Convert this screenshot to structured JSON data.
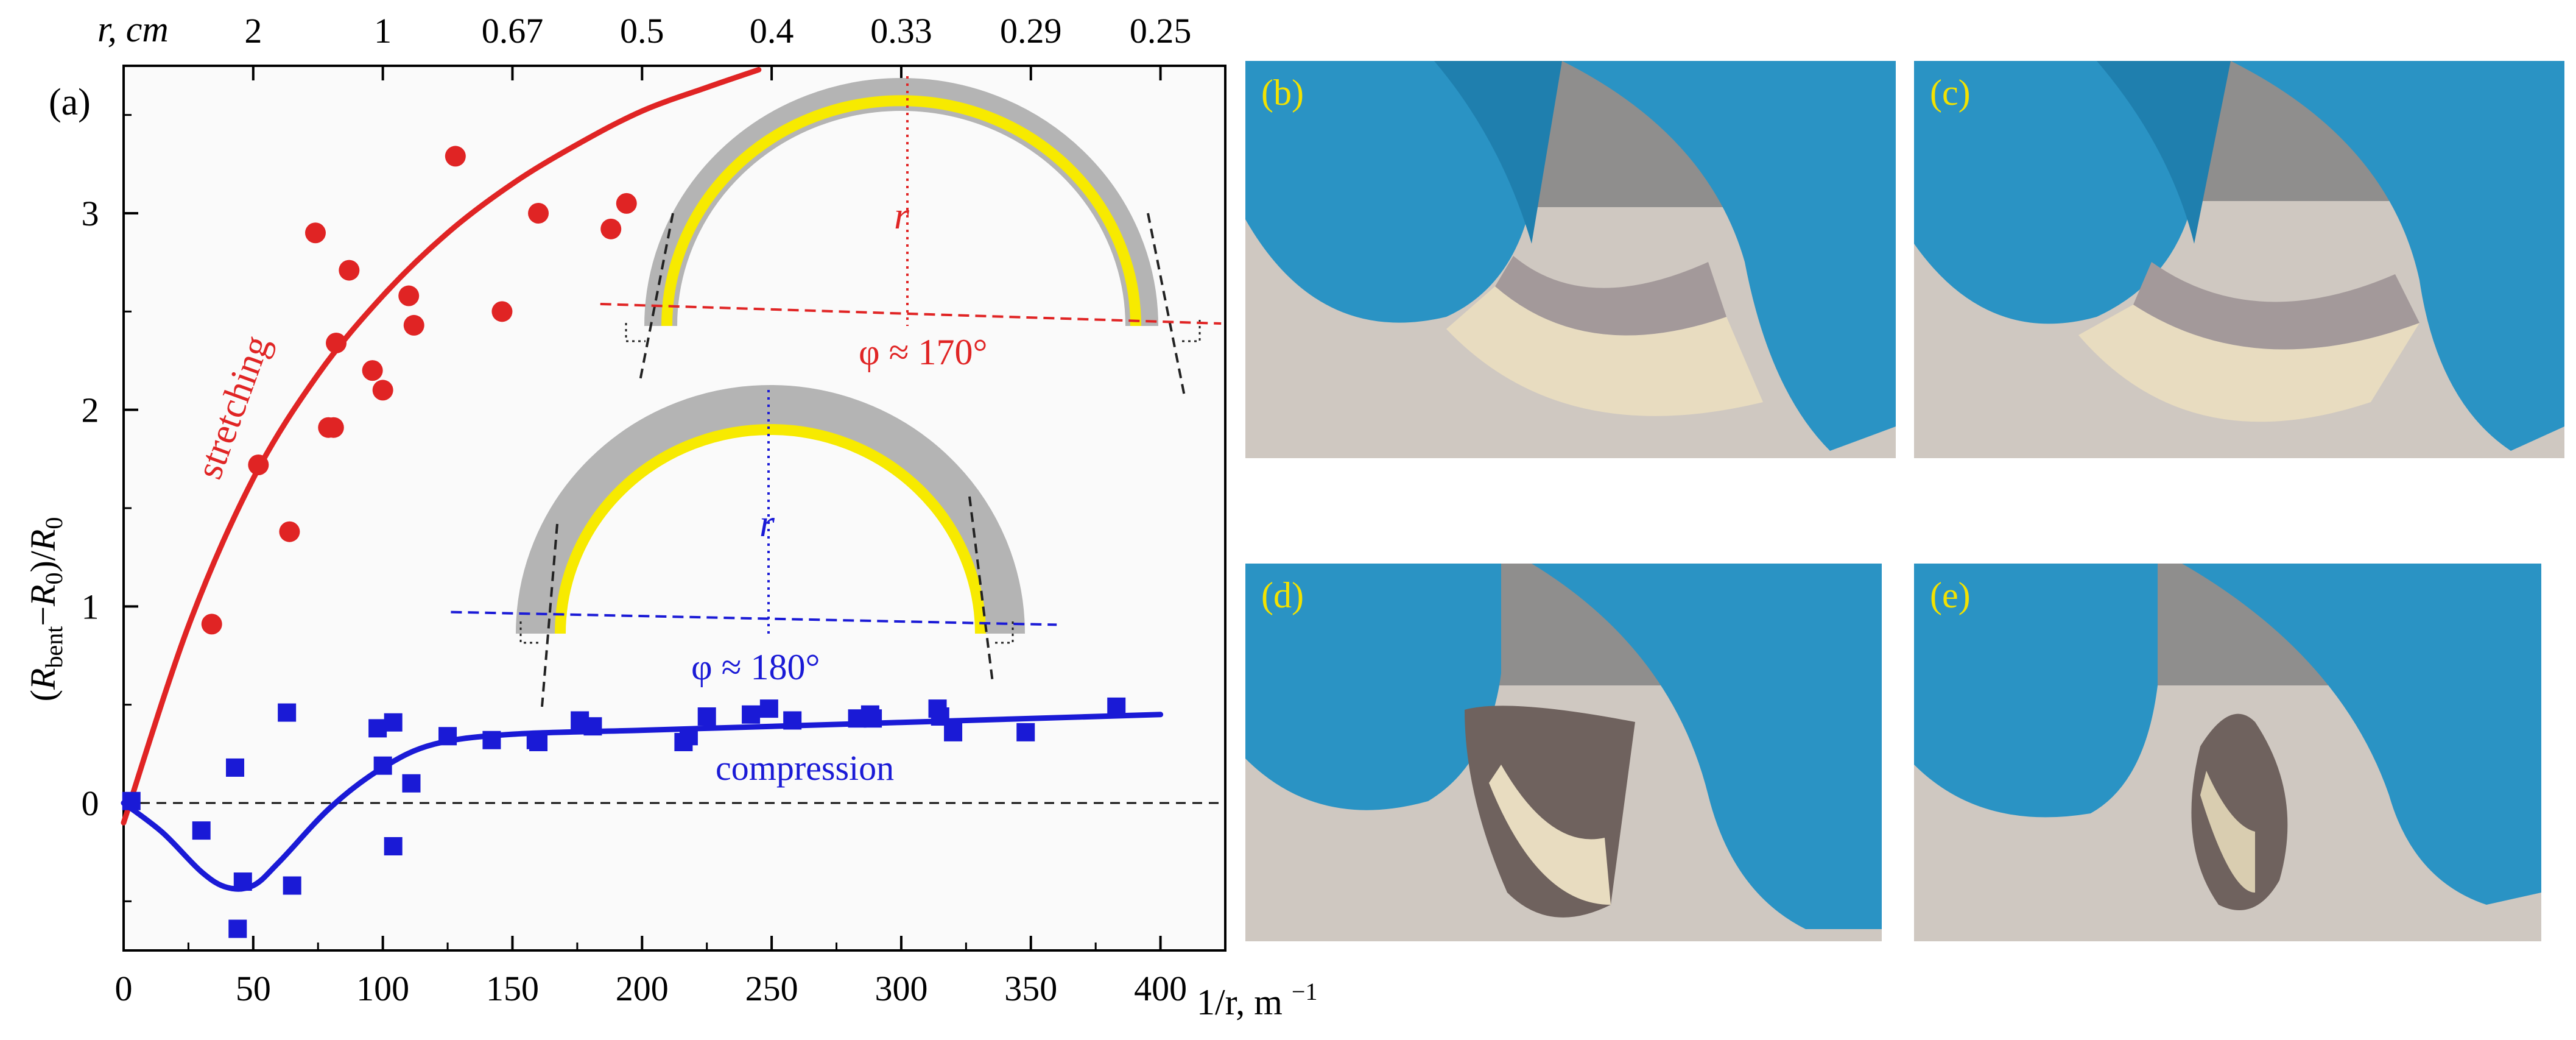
{
  "chart_data": {
    "type": "scatter",
    "panel_label": "(a)",
    "xlabel": "1/r, m",
    "xlabel_exp": "−1",
    "ylabel_parts": [
      "(",
      "R",
      "bent",
      "−",
      "R",
      "0",
      ")/",
      "R",
      "0"
    ],
    "top_axis_label": "r, cm",
    "xlim": [
      0,
      425
    ],
    "ylim": [
      -0.75,
      3.75
    ],
    "x_ticks": [
      0,
      50,
      100,
      150,
      200,
      250,
      300,
      350,
      400
    ],
    "x_tick_labels": [
      "0",
      "50",
      "100",
      "150",
      "200",
      "250",
      "300",
      "350",
      "400"
    ],
    "y_ticks": [
      0,
      1,
      2,
      3
    ],
    "y_tick_labels": [
      "0",
      "1",
      "2",
      "3"
    ],
    "top_ticks": [
      50,
      100,
      150,
      200,
      250,
      300,
      350,
      400
    ],
    "top_tick_labels": [
      "2",
      "1",
      "0.67",
      "0.5",
      "0.4",
      "0.33",
      "0.29",
      "0.25"
    ],
    "zero_line": true,
    "series": [
      {
        "name": "stretching",
        "color": "#e02424",
        "marker": "circle",
        "points": [
          [
            34,
            0.91
          ],
          [
            52,
            1.72
          ],
          [
            64,
            1.38
          ],
          [
            74,
            2.9
          ],
          [
            79,
            1.91
          ],
          [
            81,
            1.91
          ],
          [
            82,
            2.34
          ],
          [
            87,
            2.71
          ],
          [
            96,
            2.2
          ],
          [
            100,
            2.1
          ],
          [
            110,
            2.58
          ],
          [
            112,
            2.43
          ],
          [
            128,
            3.29
          ],
          [
            146,
            2.5
          ],
          [
            160,
            3.0
          ],
          [
            188,
            2.92
          ],
          [
            194,
            3.05
          ]
        ],
        "fit_x": [
          0,
          25,
          50,
          75,
          100,
          125,
          150,
          175,
          200,
          225,
          245
        ],
        "fit_y": [
          -0.1,
          0.9,
          1.65,
          2.18,
          2.58,
          2.9,
          3.15,
          3.35,
          3.52,
          3.64,
          3.73
        ]
      },
      {
        "name": "compression",
        "color": "#1a1ad6",
        "marker": "square",
        "points": [
          [
            3,
            0.01
          ],
          [
            30,
            -0.14
          ],
          [
            43,
            0.18
          ],
          [
            44,
            -0.64
          ],
          [
            46,
            -0.4
          ],
          [
            63,
            0.46
          ],
          [
            65,
            -0.42
          ],
          [
            98,
            0.38
          ],
          [
            100,
            0.19
          ],
          [
            104,
            -0.22
          ],
          [
            104,
            0.41
          ],
          [
            111,
            0.1
          ],
          [
            125,
            0.34
          ],
          [
            142,
            0.32
          ],
          [
            159,
            0.32
          ],
          [
            160,
            0.31
          ],
          [
            176,
            0.42
          ],
          [
            181,
            0.39
          ],
          [
            216,
            0.31
          ],
          [
            218,
            0.34
          ],
          [
            225,
            0.44
          ],
          [
            242,
            0.45
          ],
          [
            249,
            0.48
          ],
          [
            258,
            0.42
          ],
          [
            283,
            0.43
          ],
          [
            288,
            0.45
          ],
          [
            289,
            0.43
          ],
          [
            314,
            0.48
          ],
          [
            315,
            0.44
          ],
          [
            320,
            0.36
          ],
          [
            348,
            0.36
          ],
          [
            383,
            0.49
          ]
        ],
        "fit_x": [
          0,
          15,
          30,
          40,
          50,
          60,
          80,
          100,
          120,
          150,
          200,
          250,
          300,
          350,
          400
        ],
        "fit_y": [
          0,
          -0.15,
          -0.35,
          -0.43,
          -0.42,
          -0.3,
          -0.02,
          0.18,
          0.3,
          0.35,
          0.37,
          0.39,
          0.41,
          0.43,
          0.45
        ]
      }
    ],
    "annotations": {
      "stretching_label": "stretching",
      "compression_label": "compression",
      "red_radius_label": "r",
      "red_angle_label": "φ ≈ 170°",
      "blue_radius_label": "r",
      "blue_angle_label": "φ ≈ 180°"
    }
  },
  "photos": [
    {
      "label": "(b)"
    },
    {
      "label": "(c)"
    },
    {
      "label": "(d)"
    },
    {
      "label": "(e)"
    }
  ],
  "colors": {
    "stretching": "#e02424",
    "compression": "#1a1ad6",
    "strip_gray": "#b4b4b4",
    "strip_yellow": "#f7ea00",
    "photo_label": "#f2e200",
    "glove": "#2a93c4"
  }
}
